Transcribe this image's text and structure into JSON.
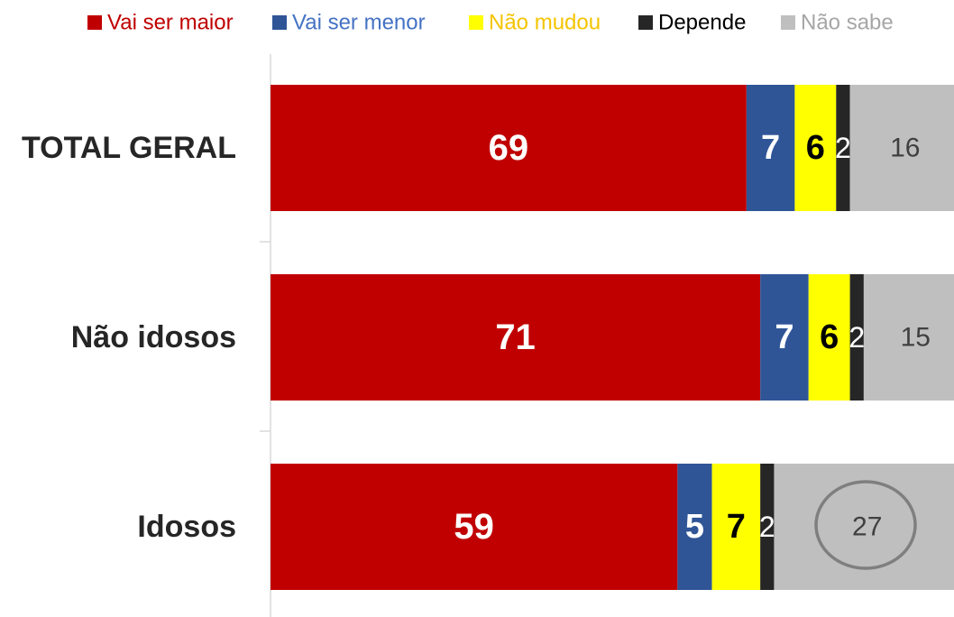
{
  "chart_data": {
    "type": "stacked-bar-horizontal",
    "categories": [
      "TOTAL GERAL",
      "Não idosos",
      "Idosos"
    ],
    "series": [
      {
        "name": "Vai ser maior",
        "color": "#c00000",
        "values": [
          69,
          71,
          59
        ]
      },
      {
        "name": "Vai ser menor",
        "color": "#2f5597",
        "values": [
          7,
          7,
          5
        ]
      },
      {
        "name": "Não mudou",
        "color": "#ffff00",
        "values": [
          6,
          6,
          7
        ]
      },
      {
        "name": "Depende",
        "color": "#262626",
        "values": [
          2,
          2,
          2
        ]
      },
      {
        "name": "Não sabe",
        "color": "#bfbfbf",
        "values": [
          16,
          15,
          27
        ]
      }
    ],
    "legend": "top"
  }
}
